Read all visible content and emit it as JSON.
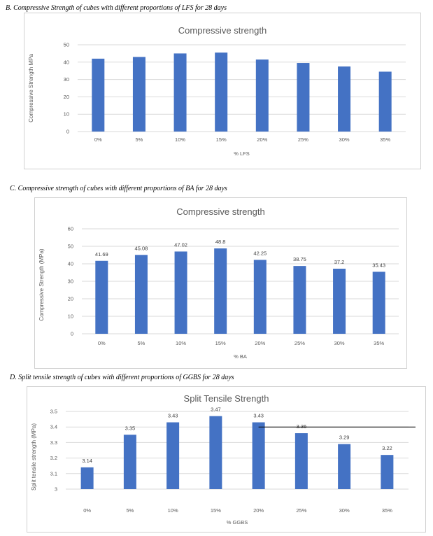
{
  "captions": {
    "b": "B.   Compressive Strength of cubes with different proportions of LFS for 28 days",
    "c": "C.   Compressive strength of cubes with different proportions of BA for 28 days",
    "d": "D.   Split tensile strength of cubes with different proportions of GGBS for 28 days"
  },
  "colors": {
    "bar": "#4472C4",
    "grid": "#d9d9d9",
    "axis_text": "#595959"
  },
  "chart_data": [
    {
      "type": "bar",
      "title": "Compressive strength",
      "xlabel": "% LFS",
      "ylabel": "Compressive Strength MPa",
      "categories": [
        "0%",
        "5%",
        "10%",
        "15%",
        "20%",
        "25%",
        "30%",
        "35%"
      ],
      "values": [
        42,
        43,
        45,
        45.5,
        41.5,
        39.5,
        37.5,
        34.5
      ],
      "ylim": [
        0,
        50
      ],
      "yticks": [
        0,
        10,
        20,
        30,
        40,
        50
      ],
      "data_labels": false,
      "grid": true
    },
    {
      "type": "bar",
      "title": "Compressive strength",
      "xlabel": "% BA",
      "ylabel": "Compressive Strength (MPa)",
      "categories": [
        "0%",
        "5%",
        "10%",
        "15%",
        "20%",
        "25%",
        "30%",
        "35%"
      ],
      "values": [
        41.69,
        45.08,
        47.02,
        48.8,
        42.25,
        38.75,
        37.2,
        35.43
      ],
      "ylim": [
        0,
        60
      ],
      "yticks": [
        0,
        10,
        20,
        30,
        40,
        50,
        60
      ],
      "data_labels": true,
      "grid": true
    },
    {
      "type": "bar",
      "title": "Split Tensile Strength",
      "xlabel": "% GGBS",
      "ylabel": "Split tensile strength (MPa)",
      "categories": [
        "0%",
        "5%",
        "10%",
        "15%",
        "20%",
        "25%",
        "30%",
        "35%"
      ],
      "values": [
        3.14,
        3.35,
        3.43,
        3.47,
        3.43,
        3.36,
        3.29,
        3.22
      ],
      "labels": [
        "3.14",
        "3.35",
        "3.43",
        "3.47",
        "3.43",
        "3.36",
        "3.29",
        "3.22"
      ],
      "ylim": [
        3,
        3.5
      ],
      "yticks": [
        3,
        3.1,
        3.2,
        3.3,
        3.4,
        3.5
      ],
      "data_labels": true,
      "grid": true,
      "reference_line_y": 3.4
    }
  ]
}
